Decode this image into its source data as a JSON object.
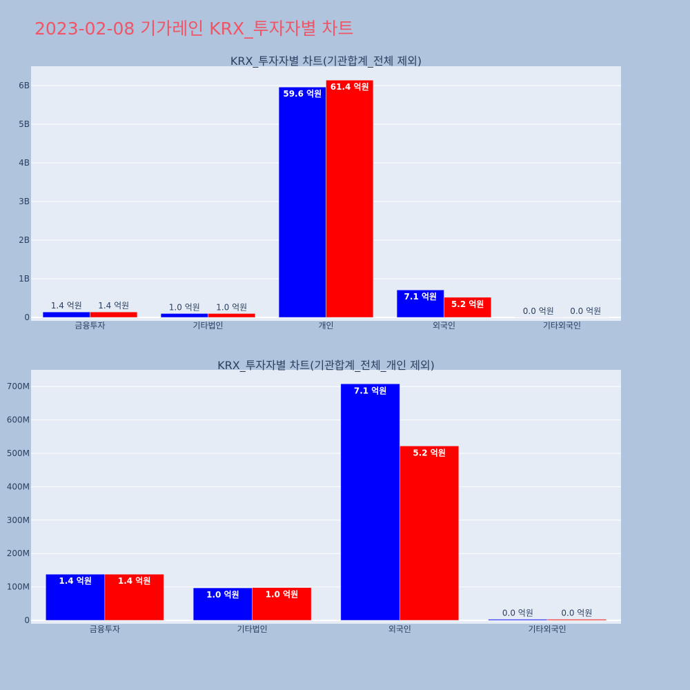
{
  "title": "2023-02-08 기가레인 KRX_투자자별 차트",
  "colors": {
    "buy": "#0000ff",
    "sell": "#ff0000",
    "plot_bg": "#e5ecf6",
    "page_bg": "#b0c4de",
    "title": "#ef5566"
  },
  "chart_data": [
    {
      "type": "bar",
      "title": "KRX_투자자별 차트(기관합계_전체 제외)",
      "categories": [
        "금융투자",
        "기타법인",
        "개인",
        "외국인",
        "기타외국인"
      ],
      "ylim": [
        0,
        6500000000
      ],
      "yticks": [
        0,
        1000000000,
        2000000000,
        3000000000,
        4000000000,
        5000000000,
        6000000000
      ],
      "ytick_labels": [
        "0",
        "1B",
        "2B",
        "3B",
        "4B",
        "5B",
        "6B"
      ],
      "grid": true,
      "series": [
        {
          "values": [
            140000000,
            100000000,
            5960000000,
            710000000,
            3000000
          ],
          "labels": [
            "1.4 억원",
            "1.0 억원",
            "59.6 억원",
            "7.1 억원",
            "0.0 억원"
          ]
        },
        {
          "values": [
            140000000,
            100000000,
            6140000000,
            520000000,
            3000000
          ],
          "labels": [
            "1.4 억원",
            "1.0 억원",
            "61.4 억원",
            "5.2 억원",
            "0.0 억원"
          ]
        }
      ]
    },
    {
      "type": "bar",
      "title": "KRX_투자자별 차트(기관합계_전체_개인 제외)",
      "categories": [
        "금융투자",
        "기타법인",
        "외국인",
        "기타외국인"
      ],
      "ylim": [
        0,
        750000000
      ],
      "yticks": [
        0,
        100000000,
        200000000,
        300000000,
        400000000,
        500000000,
        600000000,
        700000000
      ],
      "ytick_labels": [
        "0",
        "100M",
        "200M",
        "300M",
        "400M",
        "500M",
        "600M",
        "700M"
      ],
      "grid": true,
      "series": [
        {
          "values": [
            138000000,
            97000000,
            708000000,
            3000000
          ],
          "labels": [
            "1.4 억원",
            "1.0 억원",
            "7.1 억원",
            "0.0 억원"
          ]
        },
        {
          "values": [
            138000000,
            98000000,
            522000000,
            3000000
          ],
          "labels": [
            "1.4 억원",
            "1.0 억원",
            "5.2 억원",
            "0.0 억원"
          ]
        }
      ]
    }
  ]
}
